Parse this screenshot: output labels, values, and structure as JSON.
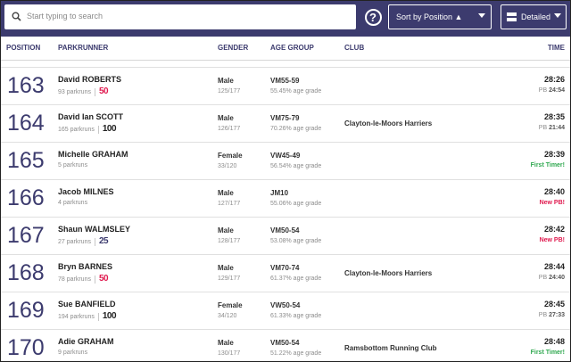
{
  "toolbar": {
    "search_placeholder": "Start typing to search",
    "help_label": "?",
    "sort_label": "Sort by Position ▲",
    "view_label": "Detailed"
  },
  "columns": {
    "position": "POSITION",
    "parkrunner": "PARKRUNNER",
    "gender": "GENDER",
    "age_group": "AGE GROUP",
    "club": "CLUB",
    "time": "TIME"
  },
  "colors": {
    "header_bg": "#3c3b6e",
    "milestone_50": "#e01a4f",
    "milestone_25": "#3c3b6e",
    "first_timer": "#2fa84f",
    "new_pb": "#e01a4f"
  },
  "rows": [
    {
      "position": "163",
      "name": "David ROBERTS",
      "parkruns": "93 parkruns",
      "milestone": "50",
      "milestone_color": "#e01a4f",
      "gender": "Male",
      "gender_pos": "125/177",
      "age_group": "VM55-59",
      "age_grade": "55.45% age grade",
      "club": "",
      "time": "28:26",
      "note_kind": "pb",
      "note_label": "PB",
      "note_value": "24:54"
    },
    {
      "position": "164",
      "name": "David Ian SCOTT",
      "parkruns": "165 parkruns",
      "milestone": "100",
      "milestone_color": "#222222",
      "gender": "Male",
      "gender_pos": "126/177",
      "age_group": "VM75-79",
      "age_grade": "70.26% age grade",
      "club": "Clayton-le-Moors Harriers",
      "time": "28:35",
      "note_kind": "pb",
      "note_label": "PB",
      "note_value": "21:44"
    },
    {
      "position": "165",
      "name": "Michelle GRAHAM",
      "parkruns": "5 parkruns",
      "milestone": "",
      "milestone_color": "",
      "gender": "Female",
      "gender_pos": "33/120",
      "age_group": "VW45-49",
      "age_grade": "56.54% age grade",
      "club": "",
      "time": "28:39",
      "note_kind": "first",
      "note_label": "First Timer!",
      "note_value": ""
    },
    {
      "position": "166",
      "name": "Jacob MILNES",
      "parkruns": "4 parkruns",
      "milestone": "",
      "milestone_color": "",
      "gender": "Male",
      "gender_pos": "127/177",
      "age_group": "JM10",
      "age_grade": "55.06% age grade",
      "club": "",
      "time": "28:40",
      "note_kind": "newpb",
      "note_label": "New PB!",
      "note_value": ""
    },
    {
      "position": "167",
      "name": "Shaun WALMSLEY",
      "parkruns": "27 parkruns",
      "milestone": "25",
      "milestone_color": "#3c3b6e",
      "gender": "Male",
      "gender_pos": "128/177",
      "age_group": "VM50-54",
      "age_grade": "53.08% age grade",
      "club": "",
      "time": "28:42",
      "note_kind": "newpb",
      "note_label": "New PB!",
      "note_value": ""
    },
    {
      "position": "168",
      "name": "Bryn BARNES",
      "parkruns": "78 parkruns",
      "milestone": "50",
      "milestone_color": "#e01a4f",
      "gender": "Male",
      "gender_pos": "129/177",
      "age_group": "VM70-74",
      "age_grade": "61.37% age grade",
      "club": "Clayton-le-Moors Harriers",
      "time": "28:44",
      "note_kind": "pb",
      "note_label": "PB",
      "note_value": "24:40"
    },
    {
      "position": "169",
      "name": "Sue BANFIELD",
      "parkruns": "194 parkruns",
      "milestone": "100",
      "milestone_color": "#222222",
      "gender": "Female",
      "gender_pos": "34/120",
      "age_group": "VW50-54",
      "age_grade": "61.33% age grade",
      "club": "",
      "time": "28:45",
      "note_kind": "pb",
      "note_label": "PB",
      "note_value": "27:33"
    },
    {
      "position": "170",
      "name": "Adie GRAHAM",
      "parkruns": "9 parkruns",
      "milestone": "",
      "milestone_color": "",
      "gender": "Male",
      "gender_pos": "130/177",
      "age_group": "VM50-54",
      "age_grade": "51.22% age grade",
      "club": "Ramsbottom Running Club",
      "time": "28:48",
      "note_kind": "first",
      "note_label": "First Timer!",
      "note_value": ""
    }
  ]
}
